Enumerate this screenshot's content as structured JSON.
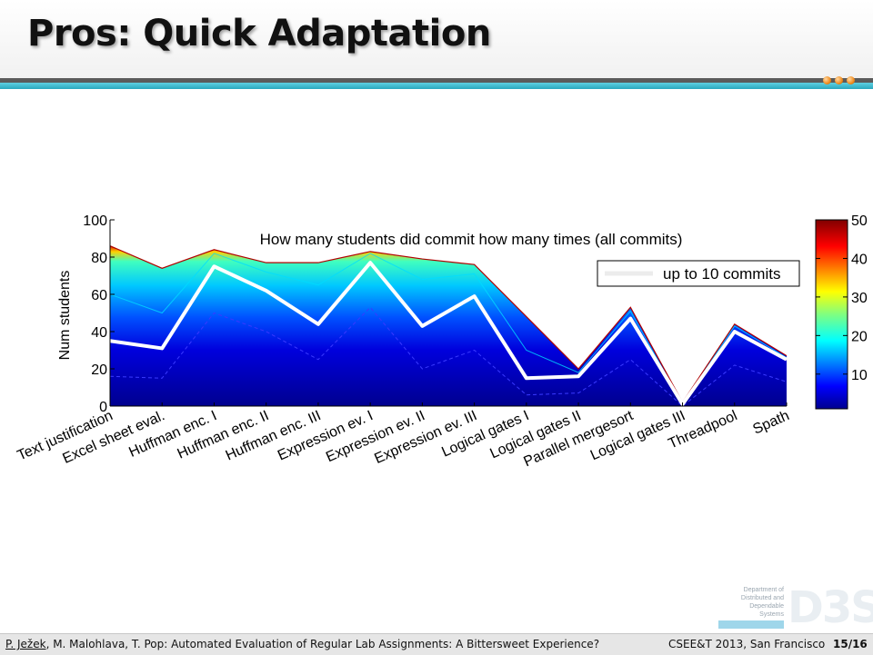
{
  "slide": {
    "title": "Pros: Quick Adaptation"
  },
  "footer": {
    "author_first": "P. Ježek",
    "rest": ", M. Malohlava, T. Pop: Automated Evaluation of Regular Lab Assignments: A Bittersweet Experience?",
    "conference": "CSEE&T 2013, San Francisco",
    "page": "15/16"
  },
  "logo": {
    "lines": [
      "Department of",
      "Distributed and",
      "Dependable",
      "Systems"
    ],
    "mark": "D3S"
  },
  "colors": {
    "accent_teal": "#2aa7bd",
    "accent_orange": "#f08a1c",
    "highlight_line": "#ffffff"
  },
  "chart_data": {
    "type": "area",
    "title": "How many students did commit how many times (all commits)",
    "ylabel": "Num students",
    "xlabel": "",
    "ylim": [
      0,
      100
    ],
    "yticks": [
      0,
      20,
      40,
      60,
      80,
      100
    ],
    "categories": [
      "Text justification",
      "Excel sheet eval.",
      "Huffman enc. I",
      "Huffman enc. II",
      "Huffman enc. III",
      "Expression ev. I",
      "Expression ev. II",
      "Expression ev. III",
      "Logical gates I",
      "Logical gates II",
      "Parallel mergesort",
      "Logical gates III",
      "Threadpool",
      "Spath"
    ],
    "series": [
      {
        "name": "up to 10 commits",
        "values": [
          35,
          31,
          75,
          62,
          44,
          77,
          43,
          59,
          15,
          16,
          47,
          1,
          40,
          25
        ]
      }
    ],
    "total_all_commits": [
      86,
      74,
      84,
      77,
      77,
      83,
      79,
      76,
      48,
      20,
      53,
      2,
      44,
      27
    ],
    "bands": {
      "at_5_commits": [
        16,
        15,
        50,
        40,
        25,
        53,
        20,
        30,
        6,
        7,
        25,
        0,
        22,
        13
      ],
      "at_20_commits": [
        60,
        50,
        82,
        72,
        65,
        82,
        68,
        71,
        30,
        18,
        51,
        1,
        43,
        26
      ]
    },
    "legend": {
      "entries": [
        "up to 10 commits"
      ],
      "position": "upper-right"
    },
    "colorbar": {
      "min": 1,
      "max": 50,
      "ticks": [
        10,
        20,
        30,
        40,
        50
      ],
      "colormap": "jet"
    },
    "grid": false
  }
}
